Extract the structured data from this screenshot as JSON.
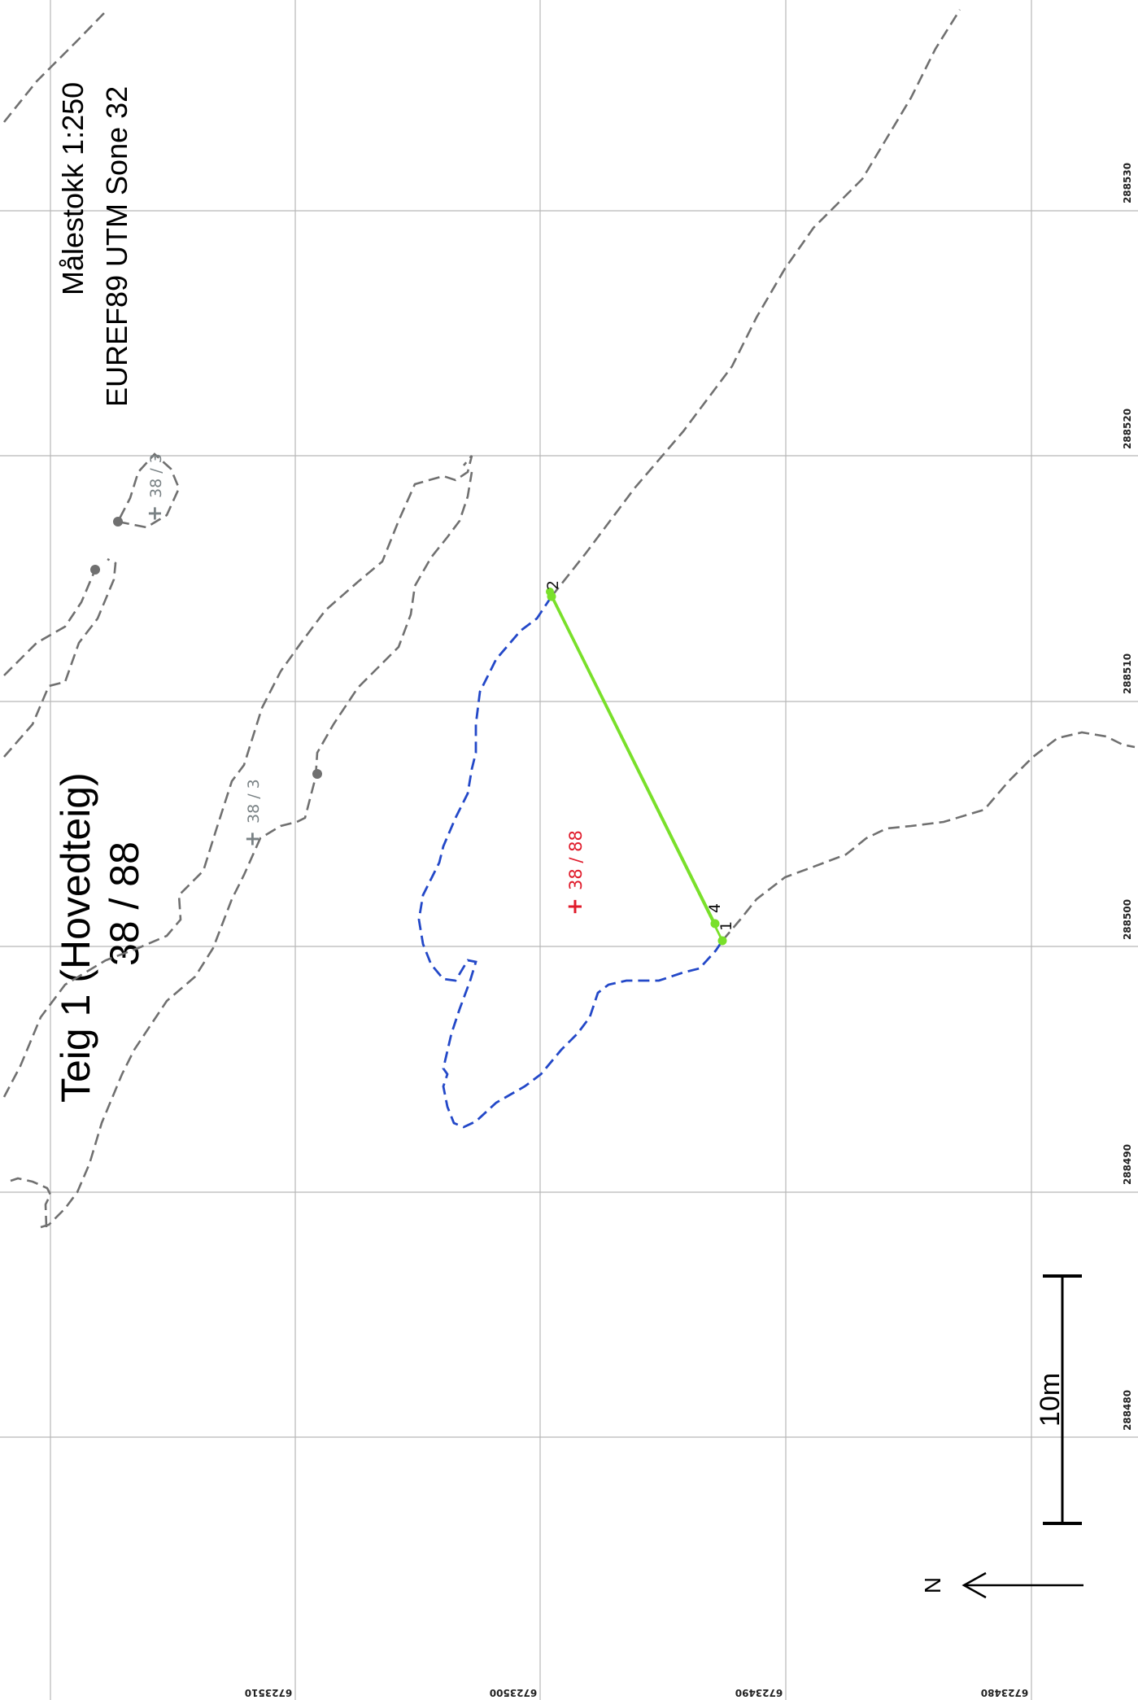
{
  "title": {
    "line1": "Teig 1 (Hovedteig)",
    "line2": "38 / 88"
  },
  "scale_text": "Målestokk 1:250",
  "crs_text": "EUREF89 UTM Sone 32",
  "coords_right": [
    "288530",
    "288520",
    "288510",
    "288500",
    "288490",
    "288480"
  ],
  "coords_bottom": [
    "6723510",
    "6723500",
    "6723490",
    "6723480"
  ],
  "parcels": [
    {
      "mark": "+",
      "label": "38 / 3"
    },
    {
      "mark": "+",
      "label": "38 / 3"
    },
    {
      "mark": "+",
      "label": "38 / 88"
    }
  ],
  "vertices": [
    "2",
    "4",
    "1"
  ],
  "scale_bar": {
    "label": "10m",
    "length_m": 10
  },
  "north_label": "N",
  "colors": {
    "neighbour_boundary": "#707070",
    "parcel_boundary": "#2348c8",
    "measured_boundary": "#79e02a",
    "parcel_label": "#e01b2b"
  }
}
